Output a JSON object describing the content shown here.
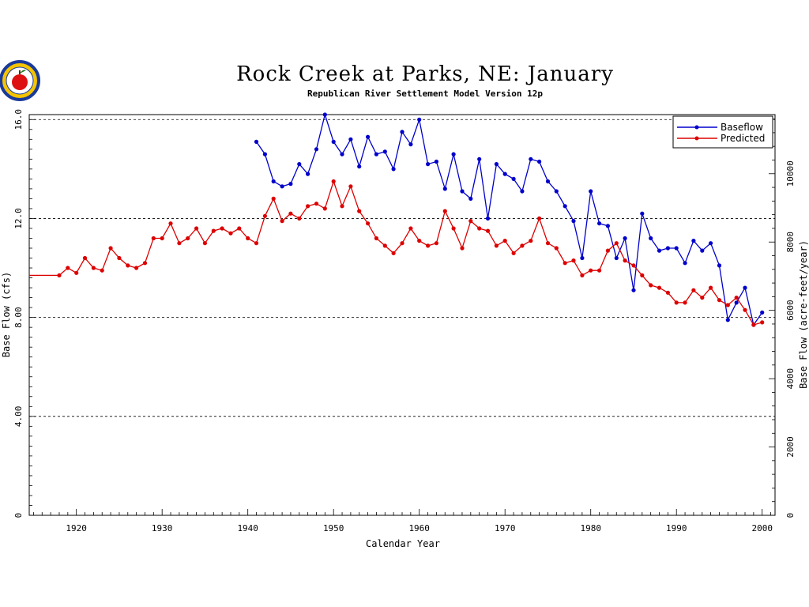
{
  "chart_data": {
    "type": "line",
    "title": "Rock Creek at Parks, NE: January",
    "subtitle": "Republican River Settlement Model Version 12p",
    "xlabel": "Calendar Year",
    "ylabel": "Base Flow (cfs)",
    "y2label": "Base Flow (acre-feet/year)",
    "xlim": [
      1914.5,
      2001.5
    ],
    "ylim": [
      0,
      16.2
    ],
    "y2lim": [
      0,
      11730
    ],
    "x_ticks": [
      "1920",
      "1930",
      "1940",
      "1950",
      "1960",
      "1970",
      "1980",
      "1990",
      "2000"
    ],
    "y_ticks": [
      "0",
      "4.00",
      "8.00",
      "12.0",
      "16.0"
    ],
    "y2_ticks": [
      "0",
      "2000",
      "4000",
      "6000",
      "8000",
      "10000"
    ],
    "grid": "horizontal dashed at 4, 8, 12, 16",
    "legend": "top-right",
    "series": [
      {
        "name": "Baseflow",
        "color": "#0000cc",
        "x": [
          1941,
          1942,
          1943,
          1944,
          1945,
          1946,
          1947,
          1948,
          1949,
          1950,
          1951,
          1952,
          1953,
          1954,
          1955,
          1956,
          1957,
          1958,
          1959,
          1960,
          1961,
          1962,
          1963,
          1964,
          1965,
          1966,
          1967,
          1968,
          1969,
          1970,
          1971,
          1972,
          1973,
          1974,
          1975,
          1976,
          1977,
          1978,
          1979,
          1980,
          1981,
          1982,
          1983,
          1984,
          1985,
          1986,
          1987,
          1988,
          1989,
          1990,
          1991,
          1992,
          1993,
          1994,
          1995,
          1996,
          1997,
          1998,
          1999,
          2000
        ],
        "y": [
          15.1,
          14.6,
          13.5,
          13.3,
          13.4,
          14.2,
          13.8,
          14.8,
          16.2,
          15.1,
          14.6,
          15.2,
          14.1,
          15.3,
          14.6,
          14.7,
          14.0,
          15.5,
          15.0,
          16.0,
          14.2,
          14.3,
          13.2,
          14.6,
          13.1,
          12.8,
          14.4,
          12.0,
          14.2,
          13.8,
          13.6,
          13.1,
          14.4,
          14.3,
          13.5,
          13.1,
          12.5,
          11.9,
          10.4,
          13.1,
          11.8,
          11.7,
          10.4,
          11.2,
          9.1,
          12.2,
          11.2,
          10.7,
          10.8,
          10.8,
          10.2,
          11.1,
          10.7,
          11.0,
          10.1,
          7.9,
          8.6,
          9.2,
          7.7,
          8.2
        ]
      },
      {
        "name": "Predicted",
        "color": "#dd0000",
        "x": [
          1914.5,
          1918,
          1919,
          1920,
          1921,
          1922,
          1923,
          1924,
          1925,
          1926,
          1927,
          1928,
          1929,
          1930,
          1931,
          1932,
          1933,
          1934,
          1935,
          1936,
          1937,
          1938,
          1939,
          1940,
          1941,
          1942,
          1943,
          1944,
          1945,
          1946,
          1947,
          1948,
          1949,
          1950,
          1951,
          1952,
          1953,
          1954,
          1955,
          1956,
          1957,
          1958,
          1959,
          1960,
          1961,
          1962,
          1963,
          1964,
          1965,
          1966,
          1967,
          1968,
          1969,
          1970,
          1971,
          1972,
          1973,
          1974,
          1975,
          1976,
          1977,
          1978,
          1979,
          1980,
          1981,
          1982,
          1983,
          1984,
          1985,
          1986,
          1987,
          1988,
          1989,
          1990,
          1991,
          1992,
          1993,
          1994,
          1995,
          1996,
          1997,
          1998,
          1999,
          2000
        ],
        "y": [
          9.7,
          9.7,
          10.0,
          9.8,
          10.4,
          10.0,
          9.9,
          10.8,
          10.4,
          10.1,
          10.0,
          10.2,
          11.2,
          11.2,
          11.8,
          11.0,
          11.2,
          11.6,
          11.0,
          11.5,
          11.6,
          11.4,
          11.6,
          11.2,
          11.0,
          12.1,
          12.8,
          11.9,
          12.2,
          12.0,
          12.5,
          12.6,
          12.4,
          13.5,
          12.5,
          13.3,
          12.3,
          11.8,
          11.2,
          10.9,
          10.6,
          11.0,
          11.6,
          11.1,
          10.9,
          11.0,
          12.3,
          11.6,
          10.8,
          11.9,
          11.6,
          11.5,
          10.9,
          11.1,
          10.6,
          10.9,
          11.1,
          12.0,
          11.0,
          10.8,
          10.2,
          10.3,
          9.7,
          9.9,
          9.9,
          10.7,
          11.0,
          10.3,
          10.1,
          9.7,
          9.3,
          9.2,
          9.0,
          8.6,
          8.6,
          9.1,
          8.8,
          9.2,
          8.7,
          8.5,
          8.8,
          8.3,
          7.7,
          7.8
        ]
      }
    ]
  },
  "logo": {
    "icon": "apple-seal-icon",
    "ring_color": "#1a3a9a",
    "apple_color": "#dd1111"
  }
}
